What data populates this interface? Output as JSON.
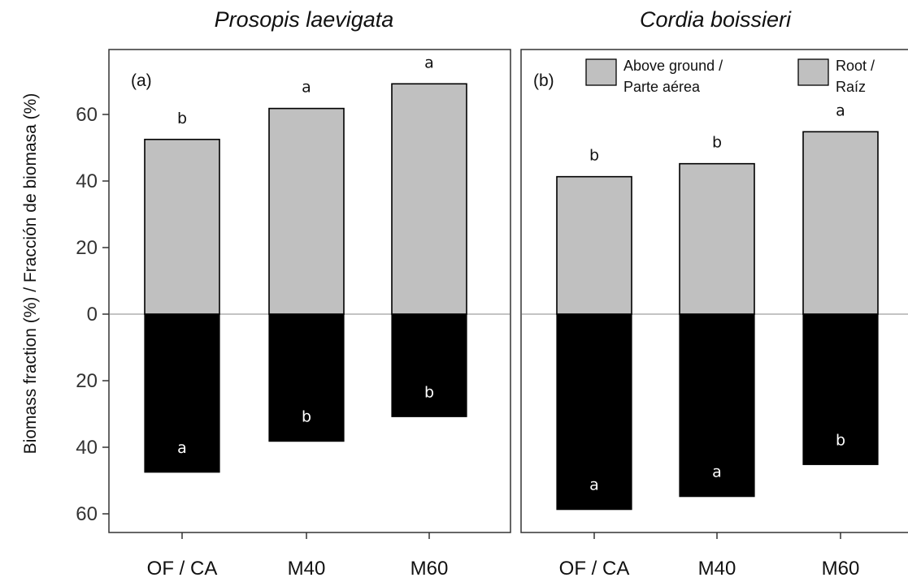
{
  "chart_data": [
    {
      "type": "bar",
      "panel_label": "(a)",
      "title": "Prosopis laevigata",
      "categories": [
        "OF / CA",
        "M40",
        "M60"
      ],
      "series": [
        {
          "name": "Above ground / Parte aérea",
          "values": [
            52.5,
            61.8,
            69.2
          ],
          "letters": [
            "b",
            "a",
            "a"
          ],
          "color": "#c0c0c0"
        },
        {
          "name": "Root / Raíz",
          "values": [
            47.5,
            38.2,
            30.8
          ],
          "letters": [
            "a",
            "b",
            "b"
          ],
          "color": "#000000"
        }
      ],
      "ylim": [
        -65,
        75
      ],
      "ylabel": "Biomass fraction (%) / Fracción de biomasa (%)",
      "yticks": [
        60,
        40,
        20,
        0,
        20,
        40,
        60
      ],
      "grid": false
    },
    {
      "type": "bar",
      "panel_label": "(b)",
      "title": "Cordia  boissieri",
      "categories": [
        "OF / CA",
        "M40",
        "M60"
      ],
      "series": [
        {
          "name": "Above ground / Parte aérea",
          "values": [
            41.3,
            45.2,
            54.8
          ],
          "letters": [
            "b",
            "b",
            "a"
          ],
          "color": "#c0c0c0"
        },
        {
          "name": "Root / Raíz",
          "values": [
            58.7,
            54.8,
            45.2
          ],
          "letters": [
            "a",
            "a",
            "b"
          ],
          "color": "#000000"
        }
      ],
      "ylim": [
        -65,
        75
      ],
      "legend": {
        "position": "top",
        "items": [
          {
            "line1": "Above ground /",
            "line2": "Parte aérea",
            "color": "#c0c0c0"
          },
          {
            "line1": "Root /",
            "line2": "Raíz",
            "color": "#c0c0c0"
          }
        ]
      },
      "grid": false
    }
  ]
}
